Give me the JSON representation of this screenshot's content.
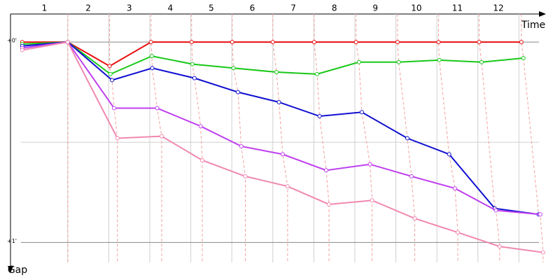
{
  "chart_data": {
    "type": "line",
    "x_label": "Time",
    "y_label": "Gap",
    "y_inverted": true,
    "xlim": [
      -0.14,
      12.66
    ],
    "xticks": [
      1,
      2,
      3,
      4,
      5,
      6,
      7,
      8,
      9,
      10,
      11,
      12
    ],
    "ylim": [
      -0.14,
      1.1
    ],
    "yticks": [
      {
        "value": 0,
        "label": "+0'"
      },
      {
        "value": 0.5,
        "label": null
      },
      {
        "value": 1,
        "label": "+1'"
      }
    ],
    "grid": true,
    "series": [
      {
        "name": null,
        "color": "#e81010",
        "x": [
          -0.11,
          1,
          2.02,
          3.03,
          4.02,
          5.01,
          6.0,
          7.01,
          8.03,
          9.04,
          10.04,
          11.03,
          12.06
        ],
        "values": [
          0,
          0,
          0.12,
          0,
          0,
          0,
          0,
          0,
          0,
          0,
          0,
          0,
          0
        ]
      },
      {
        "name": null,
        "color": "#18c818",
        "x": [
          -0.11,
          1,
          2.04,
          3.05,
          4.04,
          5.04,
          6.09,
          7.08,
          8.1,
          9.07,
          10.06,
          11.09,
          12.11
        ],
        "values": [
          0.01,
          0,
          0.16,
          0.07,
          0.11,
          0.13,
          0.15,
          0.16,
          0.1,
          0.1,
          0.09,
          0.1,
          0.08
        ]
      },
      {
        "name": null,
        "color": "#1010d0",
        "x": [
          -0.11,
          1,
          2.08,
          3.06,
          4.09,
          5.15,
          6.15,
          7.14,
          8.17,
          9.28,
          10.3,
          11.41,
          12.48
        ],
        "values": [
          0.02,
          0,
          0.19,
          0.13,
          0.18,
          0.25,
          0.3,
          0.37,
          0.35,
          0.48,
          0.56,
          0.83,
          0.86
        ]
      },
      {
        "name": null,
        "color": "#c040f0",
        "x": [
          -0.11,
          1,
          2.13,
          3.18,
          4.24,
          5.23,
          6.24,
          7.3,
          8.37,
          9.38,
          10.44,
          11.44,
          12.52
        ],
        "values": [
          0.03,
          0,
          0.33,
          0.33,
          0.42,
          0.52,
          0.56,
          0.64,
          0.61,
          0.67,
          0.73,
          0.84,
          0.86
        ]
      },
      {
        "name": null,
        "color": "#f088b0",
        "x": [
          -0.11,
          1,
          2.21,
          3.29,
          4.28,
          5.33,
          6.36,
          7.37,
          8.42,
          9.46,
          10.51,
          11.53,
          12.59
        ],
        "values": [
          0.04,
          0,
          0.48,
          0.47,
          0.59,
          0.67,
          0.72,
          0.81,
          0.79,
          0.88,
          0.95,
          1.02,
          1.05
        ]
      }
    ]
  }
}
